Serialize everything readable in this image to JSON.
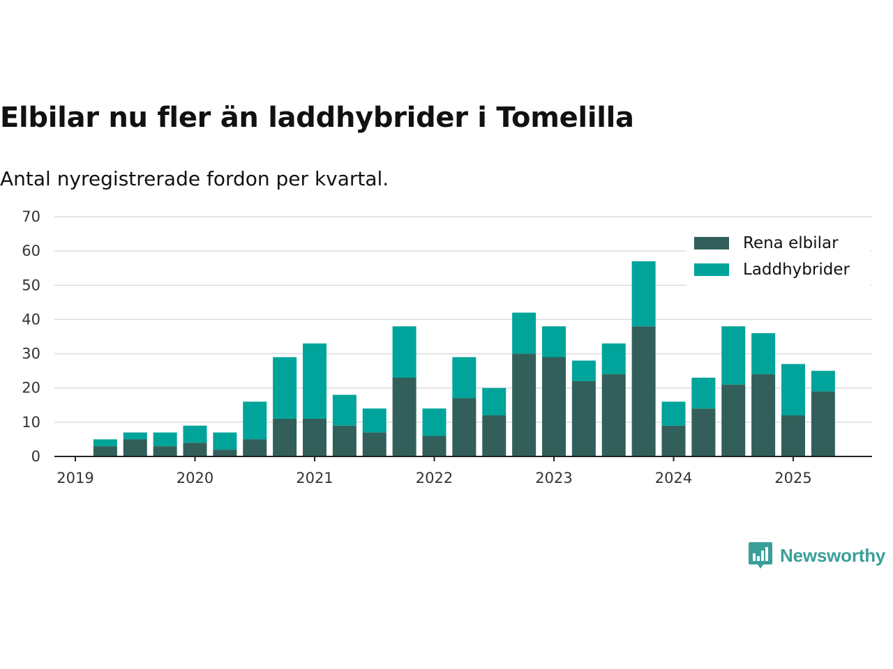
{
  "header": {
    "title": "Elbilar nu fler än laddhybrider i Tomelilla",
    "subtitle": "Antal nyregistrerade fordon per kvartal."
  },
  "brand": {
    "name": "Newsworthy",
    "icon": "newsworthy-chart-icon",
    "color": "#3a9f98"
  },
  "chart_data": {
    "type": "bar",
    "stacked": true,
    "x_unit": "quarter",
    "x": [
      "2019-Q2",
      "2019-Q3",
      "2019-Q4",
      "2020-Q1",
      "2020-Q2",
      "2020-Q3",
      "2020-Q4",
      "2021-Q1",
      "2021-Q2",
      "2021-Q3",
      "2021-Q4",
      "2022-Q1",
      "2022-Q2",
      "2022-Q3",
      "2022-Q4",
      "2023-Q1",
      "2023-Q2",
      "2023-Q3",
      "2023-Q4",
      "2024-Q1",
      "2024-Q2",
      "2024-Q3",
      "2024-Q4",
      "2025-Q1",
      "2025-Q2"
    ],
    "series": [
      {
        "name": "Rena elbilar",
        "color": "#335f5a",
        "values": [
          3,
          5,
          3,
          4,
          2,
          5,
          11,
          11,
          9,
          7,
          23,
          6,
          17,
          12,
          30,
          29,
          22,
          24,
          38,
          9,
          14,
          21,
          24,
          12,
          19
        ]
      },
      {
        "name": "Laddhybrider",
        "color": "#00a49a",
        "values": [
          2,
          2,
          4,
          5,
          5,
          11,
          18,
          22,
          9,
          7,
          15,
          8,
          12,
          8,
          12,
          9,
          6,
          9,
          19,
          7,
          9,
          17,
          12,
          15,
          6
        ]
      }
    ],
    "x_ticks": [
      "2019",
      "2020",
      "2021",
      "2022",
      "2023",
      "2024",
      "2025"
    ],
    "y_ticks": [
      0,
      10,
      20,
      30,
      40,
      50,
      60,
      70
    ],
    "ylim": [
      0,
      70
    ],
    "grid": "horizontal",
    "legend": "top-right"
  }
}
